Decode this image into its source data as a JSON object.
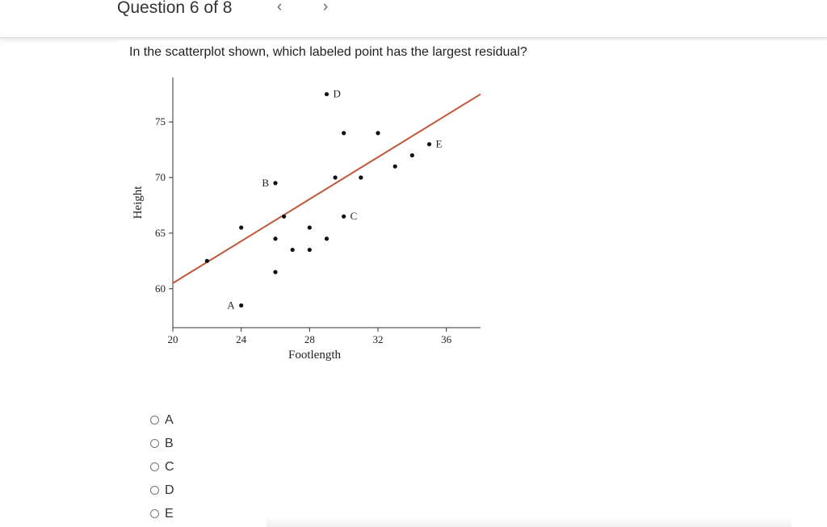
{
  "header": {
    "title": "Question 6 of 8",
    "prev_icon": "‹",
    "next_icon": "›"
  },
  "question": {
    "prompt": "In the scatterplot shown, which labeled point has the largest residual?"
  },
  "chart_data": {
    "type": "scatter",
    "xlabel": "Footlength",
    "ylabel": "Height",
    "xlim": [
      20,
      38
    ],
    "ylim": [
      56.5,
      79
    ],
    "xticks": [
      20,
      24,
      28,
      32,
      36
    ],
    "yticks": [
      60,
      65,
      70,
      75
    ],
    "points": [
      {
        "x": 22,
        "y": 62.5,
        "label": ""
      },
      {
        "x": 24,
        "y": 65.5,
        "label": ""
      },
      {
        "x": 24,
        "y": 58.5,
        "label": "A"
      },
      {
        "x": 26,
        "y": 69.5,
        "label": "B"
      },
      {
        "x": 26,
        "y": 64.5,
        "label": ""
      },
      {
        "x": 26,
        "y": 61.5,
        "label": ""
      },
      {
        "x": 26.5,
        "y": 66.5,
        "label": ""
      },
      {
        "x": 27,
        "y": 63.5,
        "label": ""
      },
      {
        "x": 28,
        "y": 65.5,
        "label": ""
      },
      {
        "x": 28,
        "y": 63.5,
        "label": ""
      },
      {
        "x": 29,
        "y": 64.5,
        "label": ""
      },
      {
        "x": 29,
        "y": 77.5,
        "label": "D"
      },
      {
        "x": 29.5,
        "y": 70,
        "label": ""
      },
      {
        "x": 30,
        "y": 74,
        "label": ""
      },
      {
        "x": 30,
        "y": 66.5,
        "label": "C"
      },
      {
        "x": 31,
        "y": 70,
        "label": ""
      },
      {
        "x": 32,
        "y": 74,
        "label": ""
      },
      {
        "x": 33,
        "y": 71,
        "label": ""
      },
      {
        "x": 34,
        "y": 72,
        "label": ""
      },
      {
        "x": 35,
        "y": 73,
        "label": "E"
      }
    ],
    "regression_line": {
      "x": [
        20,
        38
      ],
      "y": [
        60.5,
        77.5
      ],
      "color": "#c0583a"
    },
    "grid": false,
    "point_color": "#111111"
  },
  "options": [
    {
      "label": "A"
    },
    {
      "label": "B"
    },
    {
      "label": "C"
    },
    {
      "label": "D"
    },
    {
      "label": "E"
    }
  ]
}
